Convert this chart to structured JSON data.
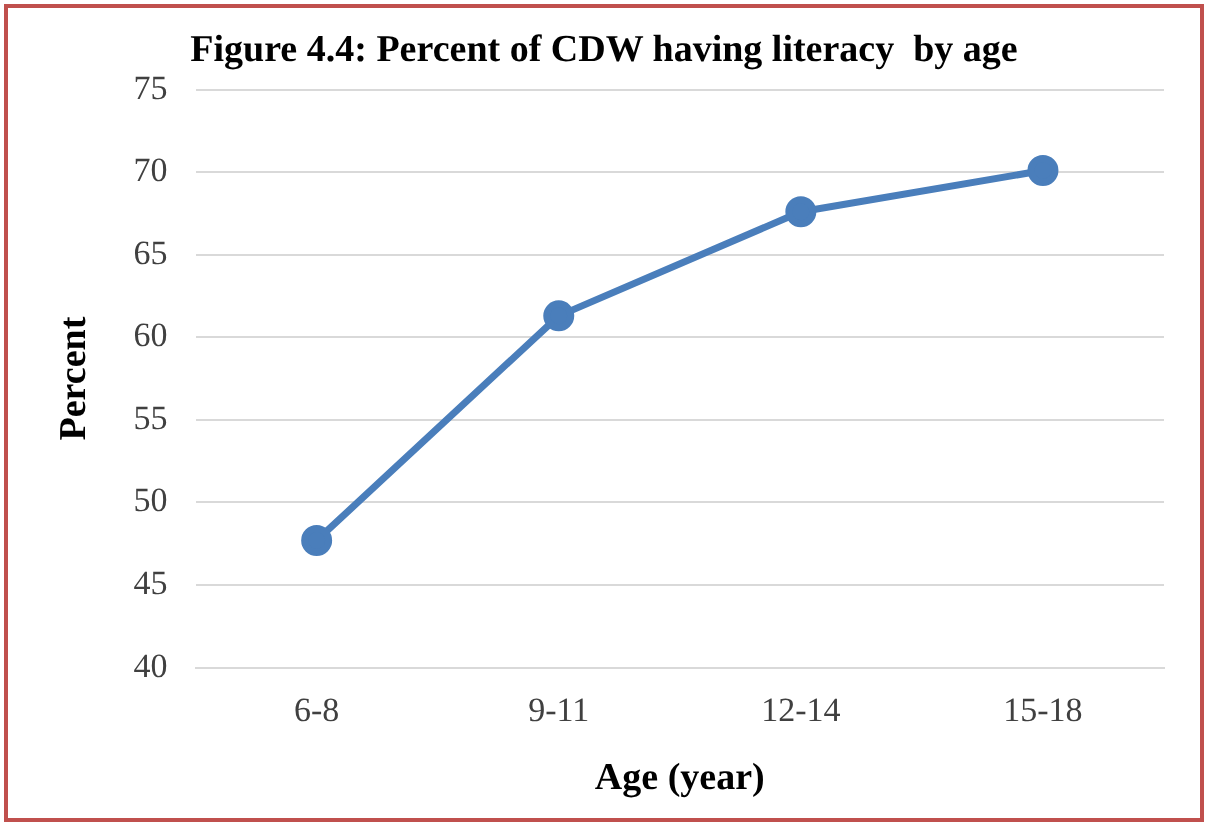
{
  "chart_data": {
    "type": "line",
    "title": "Figure 4.4: Percent of CDW having literacy  by age",
    "xlabel": "Age (year)",
    "ylabel": "Percent",
    "categories": [
      "6-8",
      "9-11",
      "12-14",
      "15-18"
    ],
    "series": [
      {
        "color": "#4a7ebb",
        "values": [
          47.7,
          61.3,
          67.6,
          70.1
        ]
      }
    ],
    "ylim": [
      40,
      75
    ],
    "yticks": [
      40,
      45,
      50,
      55,
      60,
      65,
      70,
      75
    ],
    "grid": "y",
    "marker": "circle",
    "line_style": "solid"
  }
}
